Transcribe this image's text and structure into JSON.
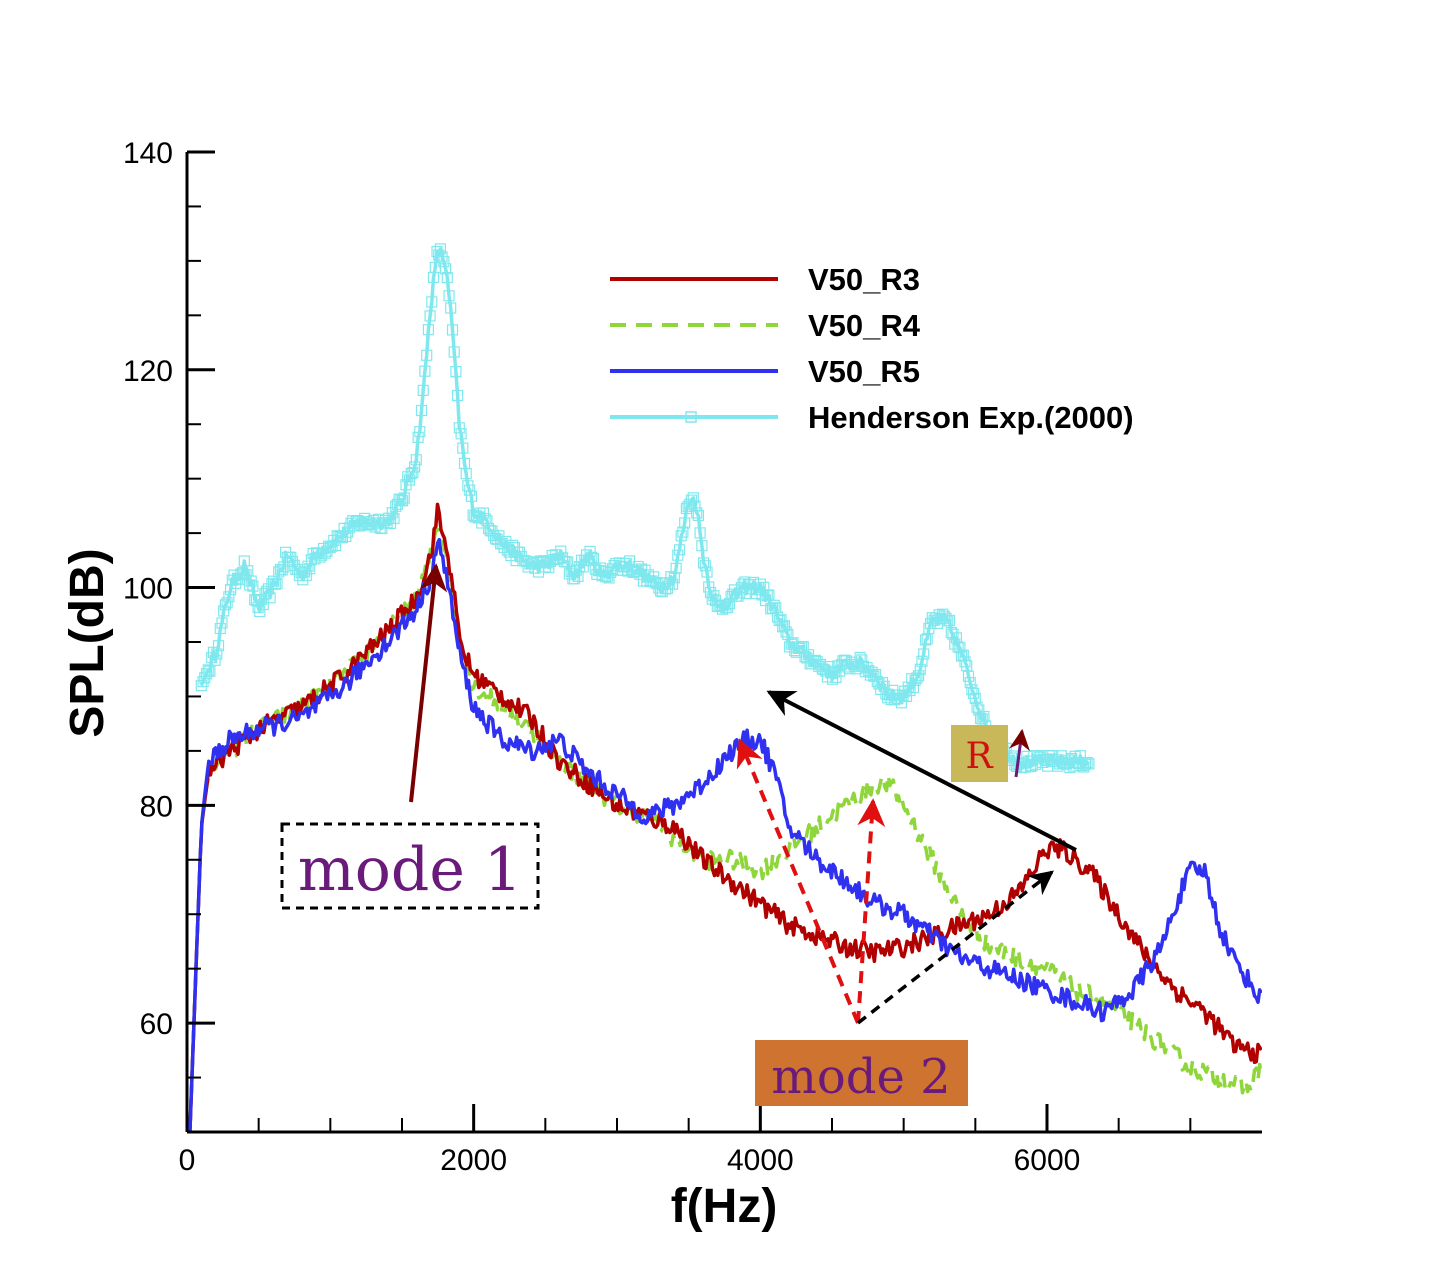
{
  "chart_data": {
    "type": "line",
    "title": "",
    "xlabel": "f(Hz)",
    "ylabel": "SPL(dB)",
    "xlim": [
      0,
      7500
    ],
    "ylim": [
      50,
      140
    ],
    "xticks": [
      0,
      2000,
      4000,
      6000
    ],
    "yticks": [
      60,
      80,
      100,
      120,
      140
    ],
    "grid": false,
    "legend_position": "top-right",
    "series": [
      {
        "name": "V50_R3",
        "color": "#b00000",
        "style": "solid",
        "x": [
          20,
          100,
          150,
          300,
          500,
          800,
          1100,
          1400,
          1600,
          1700,
          1750,
          1800,
          1850,
          1900,
          2000,
          2200,
          2400,
          2600,
          2800,
          3000,
          3200,
          3400,
          3600,
          3800,
          4000,
          4200,
          4400,
          4600,
          4800,
          5000,
          5200,
          5400,
          5600,
          5800,
          6000,
          6100,
          6300,
          6500,
          6700,
          6900,
          7100,
          7300,
          7500
        ],
        "y": [
          50,
          78,
          83,
          85,
          87,
          89,
          92,
          96,
          99,
          103,
          107,
          104,
          101,
          95,
          92,
          90,
          88,
          84,
          82,
          80,
          79,
          78,
          75,
          73,
          71,
          69,
          68,
          67,
          66.5,
          67,
          68,
          69,
          70,
          72,
          76,
          76,
          74,
          70,
          66,
          63,
          61,
          58,
          57
        ]
      },
      {
        "name": "V50_R4",
        "color": "#8ed63a",
        "style": "dashed",
        "x": [
          20,
          100,
          150,
          300,
          500,
          800,
          1100,
          1400,
          1600,
          1700,
          1750,
          1800,
          1850,
          1900,
          2000,
          2200,
          2400,
          2600,
          2800,
          3000,
          3200,
          3400,
          3600,
          3800,
          4000,
          4200,
          4400,
          4600,
          4800,
          4900,
          5000,
          5200,
          5400,
          5600,
          5800,
          6000,
          6200,
          6400,
          6600,
          6800,
          7000,
          7200,
          7400,
          7500
        ],
        "y": [
          50,
          78,
          83,
          85,
          87,
          89,
          92,
          96,
          99,
          103,
          106,
          104,
          100,
          95,
          91,
          89,
          87,
          84,
          82,
          80,
          79,
          77,
          75,
          75,
          74,
          76,
          78,
          80,
          82,
          82,
          80,
          75,
          70,
          67,
          66,
          65,
          63,
          62,
          60,
          58,
          56,
          55,
          54,
          56
        ]
      },
      {
        "name": "V50_R5",
        "color": "#3030f0",
        "style": "solid",
        "x": [
          20,
          100,
          150,
          300,
          500,
          800,
          1100,
          1400,
          1600,
          1700,
          1750,
          1800,
          1850,
          1900,
          2000,
          2200,
          2400,
          2600,
          2800,
          3000,
          3200,
          3400,
          3600,
          3800,
          3900,
          4000,
          4100,
          4200,
          4400,
          4600,
          4800,
          5000,
          5200,
          5400,
          5600,
          5800,
          6000,
          6200,
          6400,
          6600,
          6800,
          6900,
          7000,
          7100,
          7200,
          7300,
          7500
        ],
        "y": [
          50,
          78,
          84,
          86,
          87,
          88,
          91,
          95,
          98,
          101,
          104,
          102,
          98,
          94,
          89,
          86,
          85,
          86,
          83,
          81,
          79,
          80,
          82,
          85,
          86,
          86,
          83,
          78,
          75,
          73,
          71,
          70,
          68,
          66,
          65,
          64,
          63,
          62,
          61,
          63,
          67,
          71,
          74,
          74,
          69,
          66,
          62
        ]
      },
      {
        "name": "Henderson Exp.(2000)",
        "color": "#7fe8ee",
        "style": "solid-square-markers",
        "x": [
          100,
          200,
          300,
          400,
          500,
          600,
          700,
          800,
          900,
          1000,
          1100,
          1200,
          1300,
          1400,
          1500,
          1600,
          1650,
          1700,
          1750,
          1800,
          1850,
          1900,
          1950,
          2000,
          2100,
          2200,
          2300,
          2400,
          2500,
          2600,
          2700,
          2800,
          2900,
          3000,
          3100,
          3200,
          3300,
          3400,
          3500,
          3550,
          3600,
          3650,
          3700,
          3800,
          3900,
          4000,
          4100,
          4200,
          4300,
          4400,
          4500,
          4600,
          4700,
          4800,
          4900,
          5000,
          5100,
          5200,
          5300,
          5400,
          5500,
          5550,
          5600,
          5650,
          5700,
          5800,
          5900,
          6000,
          6100,
          6200,
          6300
        ],
        "y": [
          91,
          94,
          100,
          102,
          98,
          100,
          103,
          101,
          103,
          104,
          105,
          106,
          106,
          106,
          108,
          112,
          118,
          126,
          131,
          130,
          124,
          115,
          110,
          107,
          106,
          104,
          103,
          102,
          102,
          103,
          101,
          103,
          101,
          102,
          102,
          101,
          100,
          101,
          108,
          108,
          103,
          100,
          98,
          99,
          100,
          100,
          98,
          95,
          94,
          93,
          92,
          93,
          93,
          92,
          90,
          90,
          92,
          97,
          97,
          94,
          90,
          88,
          86,
          85,
          85,
          84,
          84,
          84,
          84,
          84,
          84
        ]
      }
    ],
    "annotations": {
      "mode1": "mode 1",
      "mode2": "mode 2",
      "r": "R"
    }
  }
}
